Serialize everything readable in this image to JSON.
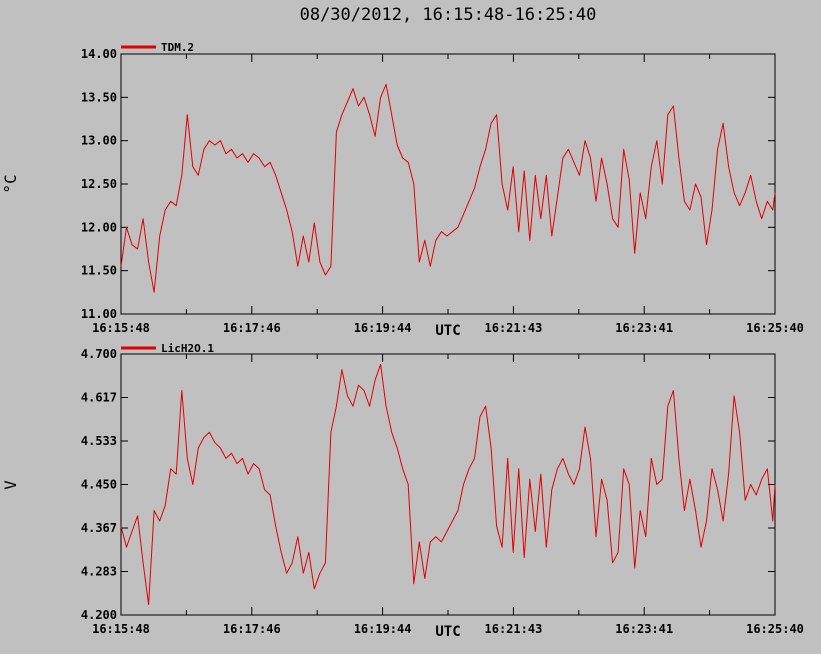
{
  "title": "08/30/2012, 16:15:48-16:25:40",
  "colors": {
    "background": "#c0c0c0",
    "series": "#e00000",
    "frame": "#000000"
  },
  "chart_data": [
    {
      "type": "line",
      "ylabel": "°C",
      "xlabel": "UTC",
      "ylim": [
        11.0,
        14.0
      ],
      "yticks": [
        "11.00",
        "11.50",
        "12.00",
        "12.50",
        "13.00",
        "13.50",
        "14.00"
      ],
      "xticks": [
        "16:15:48",
        "16:17:46",
        "16:19:44",
        "16:21:43",
        "16:23:41",
        "16:25:40"
      ],
      "legend": {
        "name": "TDM.2",
        "placement": "top-left"
      },
      "grid": false,
      "series": [
        {
          "name": "TDM.2",
          "x_seconds_from_start": [
            0,
            5,
            10,
            15,
            20,
            25,
            30,
            35,
            40,
            45,
            50,
            55,
            60,
            65,
            70,
            75,
            80,
            85,
            90,
            95,
            100,
            105,
            110,
            115,
            120,
            125,
            130,
            135,
            140,
            145,
            150,
            155,
            160,
            165,
            170,
            175,
            180,
            185,
            190,
            195,
            200,
            205,
            210,
            215,
            220,
            225,
            230,
            235,
            240,
            245,
            250,
            255,
            260,
            265,
            270,
            275,
            280,
            285,
            290,
            295,
            300,
            305,
            310,
            315,
            320,
            325,
            330,
            335,
            340,
            345,
            350,
            355,
            360,
            365,
            370,
            375,
            380,
            385,
            390,
            395,
            400,
            405,
            410,
            415,
            420,
            425,
            430,
            435,
            440,
            445,
            450,
            455,
            460,
            465,
            470,
            475,
            480,
            485,
            490,
            495,
            500,
            505,
            510,
            515,
            520,
            525,
            530,
            535,
            540,
            545,
            550,
            555,
            560,
            565,
            570,
            575,
            580,
            585,
            590,
            592
          ],
          "values": [
            11.55,
            12.0,
            11.8,
            11.75,
            12.1,
            11.6,
            11.25,
            11.9,
            12.2,
            12.3,
            12.25,
            12.6,
            13.3,
            12.7,
            12.6,
            12.9,
            13.0,
            12.95,
            13.0,
            12.85,
            12.9,
            12.8,
            12.85,
            12.75,
            12.85,
            12.8,
            12.7,
            12.75,
            12.6,
            12.4,
            12.2,
            11.95,
            11.55,
            11.9,
            11.6,
            12.05,
            11.6,
            11.45,
            11.55,
            13.1,
            13.3,
            13.45,
            13.6,
            13.4,
            13.5,
            13.3,
            13.05,
            13.5,
            13.65,
            13.3,
            12.95,
            12.8,
            12.75,
            12.5,
            11.6,
            11.85,
            11.55,
            11.85,
            11.95,
            11.9,
            11.95,
            12.0,
            12.15,
            12.3,
            12.45,
            12.7,
            12.9,
            13.2,
            13.3,
            12.5,
            12.2,
            12.7,
            11.95,
            12.65,
            11.85,
            12.6,
            12.1,
            12.6,
            11.9,
            12.35,
            12.8,
            12.9,
            12.75,
            12.6,
            13.0,
            12.8,
            12.3,
            12.8,
            12.5,
            12.1,
            12.0,
            12.9,
            12.55,
            11.7,
            12.4,
            12.1,
            12.7,
            13.0,
            12.5,
            13.3,
            13.4,
            12.8,
            12.3,
            12.2,
            12.5,
            12.35,
            11.8,
            12.2,
            12.9,
            13.2,
            12.7,
            12.4,
            12.25,
            12.4,
            12.6,
            12.3,
            12.1,
            12.3,
            12.2,
            12.4
          ]
        }
      ]
    },
    {
      "type": "line",
      "ylabel": "V",
      "xlabel": "UTC",
      "ylim": [
        4.2,
        4.7
      ],
      "yticks": [
        "4.200",
        "4.283",
        "4.367",
        "4.450",
        "4.533",
        "4.617",
        "4.700"
      ],
      "xticks": [
        "16:15:48",
        "16:17:46",
        "16:19:44",
        "16:21:43",
        "16:23:41",
        "16:25:40"
      ],
      "legend": {
        "name": "LicH2O.1",
        "placement": "top-left"
      },
      "grid": false,
      "series": [
        {
          "name": "LicH2O.1",
          "x_seconds_from_start": [
            0,
            5,
            10,
            15,
            20,
            25,
            30,
            35,
            40,
            45,
            50,
            55,
            60,
            65,
            70,
            75,
            80,
            85,
            90,
            95,
            100,
            105,
            110,
            115,
            120,
            125,
            130,
            135,
            140,
            145,
            150,
            155,
            160,
            165,
            170,
            175,
            180,
            185,
            190,
            195,
            200,
            205,
            210,
            215,
            220,
            225,
            230,
            235,
            240,
            245,
            250,
            255,
            260,
            265,
            270,
            275,
            280,
            285,
            290,
            295,
            300,
            305,
            310,
            315,
            320,
            325,
            330,
            335,
            340,
            345,
            350,
            355,
            360,
            365,
            370,
            375,
            380,
            385,
            390,
            395,
            400,
            405,
            410,
            415,
            420,
            425,
            430,
            435,
            440,
            445,
            450,
            455,
            460,
            465,
            470,
            475,
            480,
            485,
            490,
            495,
            500,
            505,
            510,
            515,
            520,
            525,
            530,
            535,
            540,
            545,
            550,
            555,
            560,
            565,
            570,
            575,
            580,
            585,
            590,
            592
          ],
          "values": [
            4.37,
            4.33,
            4.36,
            4.39,
            4.3,
            4.22,
            4.4,
            4.38,
            4.41,
            4.48,
            4.47,
            4.63,
            4.5,
            4.45,
            4.52,
            4.54,
            4.55,
            4.53,
            4.52,
            4.5,
            4.51,
            4.49,
            4.5,
            4.47,
            4.49,
            4.48,
            4.44,
            4.43,
            4.37,
            4.32,
            4.28,
            4.3,
            4.35,
            4.28,
            4.32,
            4.25,
            4.28,
            4.3,
            4.55,
            4.6,
            4.67,
            4.62,
            4.6,
            4.64,
            4.63,
            4.6,
            4.65,
            4.68,
            4.6,
            4.55,
            4.52,
            4.48,
            4.45,
            4.26,
            4.34,
            4.27,
            4.34,
            4.35,
            4.34,
            4.36,
            4.38,
            4.4,
            4.45,
            4.48,
            4.5,
            4.58,
            4.6,
            4.52,
            4.37,
            4.33,
            4.5,
            4.32,
            4.48,
            4.31,
            4.46,
            4.36,
            4.47,
            4.33,
            4.44,
            4.48,
            4.5,
            4.47,
            4.45,
            4.48,
            4.56,
            4.5,
            4.35,
            4.46,
            4.42,
            4.3,
            4.32,
            4.48,
            4.45,
            4.29,
            4.4,
            4.35,
            4.5,
            4.45,
            4.46,
            4.6,
            4.63,
            4.5,
            4.4,
            4.46,
            4.4,
            4.33,
            4.38,
            4.48,
            4.44,
            4.38,
            4.47,
            4.62,
            4.55,
            4.42,
            4.45,
            4.43,
            4.46,
            4.48,
            4.38,
            4.45
          ]
        }
      ]
    }
  ]
}
